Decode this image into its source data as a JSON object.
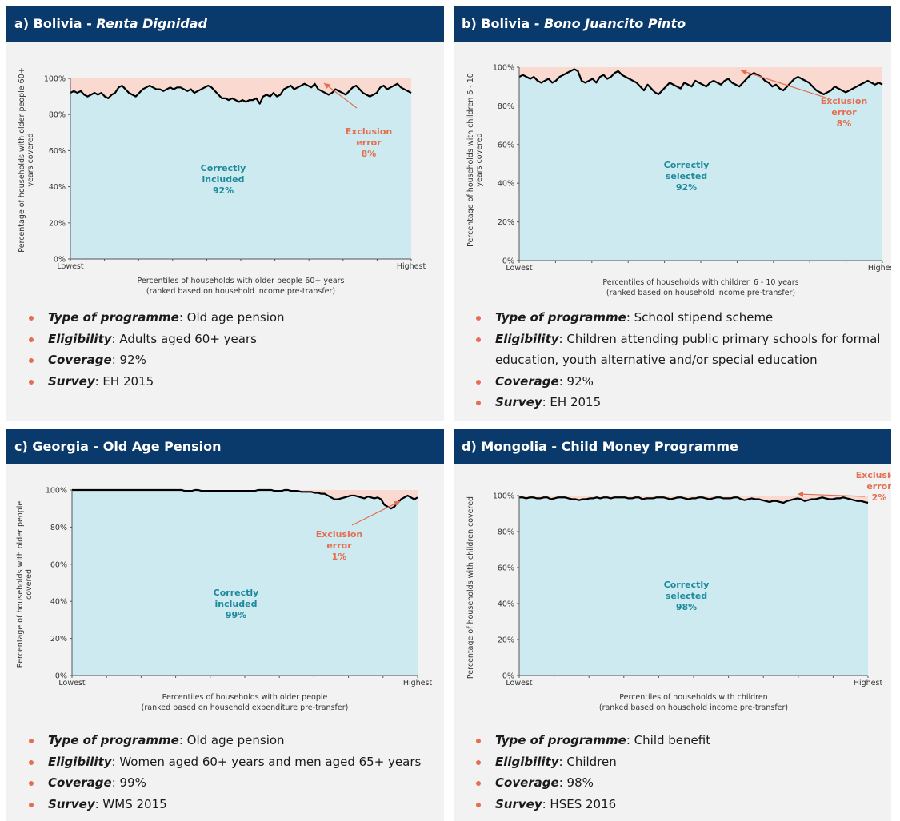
{
  "colors": {
    "header_bg": "#0a3a6b",
    "panel_bg": "#f2f2f2",
    "correct_fill": "#cdeaf1",
    "exclusion_fill": "#f9d9d0",
    "line": "#000000",
    "accent": "#e46e4f",
    "correct_text": "#1c8a9b"
  },
  "panels": [
    {
      "title_plain": "a) Bolivia - ",
      "title_italic": "Renta Dignidad",
      "ylabel_lines": [
        "Percentage of households with older people 60+",
        "years covered"
      ],
      "xlabel_lines": [
        "Percentiles of households with older people 60+ years",
        "(ranked based on household income pre-transfer)"
      ],
      "x_low": "Lowest",
      "x_high": "Highest",
      "correct_lines": [
        "Correctly",
        "included",
        "92%"
      ],
      "excl_lines": [
        "Exclusion",
        "error",
        "8%"
      ],
      "bullets": [
        {
          "key": "Type of programme",
          "text": ": Old age pension"
        },
        {
          "key": "Eligibility",
          "text": ": Adults aged 60+ years"
        },
        {
          "key": "Coverage",
          "text": ": 92%"
        },
        {
          "key": "Survey",
          "text": ": EH 2015"
        }
      ]
    },
    {
      "title_plain": "b) Bolivia - ",
      "title_italic": "Bono Juancito Pinto",
      "ylabel_lines": [
        "Percentage of households with children 6 - 10",
        "years covered"
      ],
      "xlabel_lines": [
        "Percentiles of households with children 6 - 10 years",
        "(ranked based on household income pre-transfer)"
      ],
      "x_low": "Lowest",
      "x_high": "Highest",
      "correct_lines": [
        "Correctly",
        "selected",
        "92%"
      ],
      "excl_lines": [
        "Exclusion",
        "error",
        "8%"
      ],
      "bullets": [
        {
          "key": "Type of programme",
          "text": ": School stipend scheme"
        },
        {
          "key": "Eligibility",
          "text": ":  Children attending public primary schools for formal education, youth alternative and/or special education"
        },
        {
          "key": "Coverage",
          "text": ": 92%"
        },
        {
          "key": "Survey",
          "text": ": EH 2015"
        }
      ]
    },
    {
      "title_plain": "c) Georgia - Old Age Pension",
      "title_italic": "",
      "ylabel_lines": [
        "Percentage of households with older people",
        "covered"
      ],
      "xlabel_lines": [
        "Percentiles of households with older people",
        "(ranked based on household expenditure pre-transfer)"
      ],
      "x_low": "Lowest",
      "x_high": "Highest",
      "correct_lines": [
        "Correctly",
        "included",
        "99%"
      ],
      "excl_lines": [
        "Exclusion",
        "error",
        "1%"
      ],
      "bullets": [
        {
          "key": "Type of programme",
          "text": ": Old age pension"
        },
        {
          "key": "Eligibility",
          "text": ": Women aged 60+ years and men aged 65+ years"
        },
        {
          "key": "Coverage",
          "text": ": 99%"
        },
        {
          "key": "Survey",
          "text": ": WMS 2015"
        }
      ]
    },
    {
      "title_plain": "d) Mongolia - Child Money Programme",
      "title_italic": "",
      "ylabel_lines": [
        "Percentage of households with children  covered"
      ],
      "xlabel_lines": [
        "Percentiles of households with children",
        "(ranked based on household income pre-transfer)"
      ],
      "x_low": "Lowest",
      "x_high": "Highest",
      "correct_lines": [
        "Correctly",
        "selected",
        "98%"
      ],
      "excl_lines": [
        "Exclusion",
        "error",
        "2%"
      ],
      "bullets": [
        {
          "key": "Type of programme",
          "text": ": Child benefit"
        },
        {
          "key": "Eligibility",
          "text": ": Children"
        },
        {
          "key": "Coverage",
          "text": ": 98%"
        },
        {
          "key": "Survey",
          "text": ": HSES 2016"
        }
      ]
    }
  ],
  "chart_data": [
    {
      "type": "area",
      "ylim": [
        0,
        100
      ],
      "yticks": [
        "0%",
        "20%",
        "40%",
        "60%",
        "80%",
        "100%"
      ],
      "values": [
        92,
        93,
        92,
        93,
        91,
        90,
        91,
        92,
        91,
        92,
        90,
        89,
        91,
        92,
        95,
        96,
        94,
        92,
        91,
        90,
        92,
        94,
        95,
        96,
        95,
        94,
        94,
        93,
        94,
        95,
        94,
        95,
        95,
        94,
        93,
        94,
        92,
        93,
        94,
        95,
        96,
        95,
        93,
        91,
        89,
        89,
        88,
        89,
        88,
        87,
        88,
        87,
        88,
        88,
        89,
        86,
        90,
        91,
        90,
        92,
        90,
        91,
        94,
        95,
        96,
        94,
        95,
        96,
        97,
        96,
        95,
        97,
        94,
        93,
        92,
        91,
        92,
        94,
        93,
        92,
        91,
        93,
        95,
        96,
        94,
        92,
        91,
        90,
        91,
        92,
        95,
        96,
        94,
        95,
        96,
        97,
        95,
        94,
        93,
        92
      ]
    },
    {
      "type": "area",
      "ylim": [
        0,
        100
      ],
      "yticks": [
        "0%",
        "20%",
        "40%",
        "60%",
        "80%",
        "100%"
      ],
      "values": [
        95,
        96,
        95,
        94,
        95,
        93,
        92,
        93,
        94,
        92,
        93,
        95,
        96,
        97,
        98,
        99,
        98,
        93,
        92,
        93,
        94,
        92,
        95,
        96,
        94,
        95,
        97,
        98,
        96,
        95,
        94,
        93,
        92,
        90,
        88,
        91,
        89,
        87,
        86,
        88,
        90,
        92,
        91,
        90,
        89,
        92,
        91,
        90,
        93,
        92,
        91,
        90,
        92,
        93,
        92,
        91,
        93,
        94,
        92,
        91,
        90,
        92,
        94,
        96,
        97,
        96,
        95,
        93,
        92,
        90,
        91,
        89,
        88,
        90,
        92,
        94,
        95,
        94,
        93,
        92,
        90,
        88,
        87,
        86,
        87,
        88,
        90,
        89,
        88,
        87,
        88,
        89,
        90,
        91,
        92,
        93,
        92,
        91,
        92,
        91
      ]
    },
    {
      "type": "area",
      "ylim": [
        0,
        100
      ],
      "yticks": [
        "0%",
        "20%",
        "40%",
        "60%",
        "80%",
        "100%"
      ],
      "values": [
        100,
        100,
        100,
        100,
        100,
        100,
        100,
        100,
        100,
        100,
        100,
        100,
        100,
        100,
        100,
        100,
        100,
        100,
        100,
        100,
        100,
        100,
        100,
        100,
        100,
        100,
        100,
        100,
        100,
        100,
        100,
        100,
        100,
        100,
        99.5,
        99.5,
        99.5,
        100,
        100,
        99.5,
        99.5,
        99.5,
        99.5,
        99.5,
        99.5,
        99.5,
        99.5,
        99.5,
        99.5,
        99.5,
        99.5,
        99.5,
        99.5,
        99.5,
        99.5,
        99.5,
        100,
        100,
        100,
        100,
        100,
        99.5,
        99.5,
        99.5,
        100,
        100,
        99.5,
        99.5,
        99.5,
        99,
        99,
        99,
        99,
        98.5,
        98.5,
        98,
        98,
        97,
        96,
        95,
        95,
        95.5,
        96,
        96.5,
        97,
        97,
        96.5,
        96,
        95.5,
        96.5,
        96,
        95.5,
        96,
        95,
        92,
        91,
        90,
        91,
        93,
        95,
        96,
        97,
        96,
        95,
        96
      ]
    },
    {
      "type": "area",
      "ylim": [
        0,
        100
      ],
      "yticks": [
        "0%",
        "20%",
        "40%",
        "60%",
        "80%",
        "100%"
      ],
      "values": [
        99,
        99,
        98.5,
        99,
        99,
        98.5,
        98.5,
        99,
        99,
        98,
        98.5,
        99,
        99,
        99,
        98.5,
        98,
        98,
        97.5,
        98,
        98,
        98.5,
        98.5,
        99,
        98.5,
        99,
        99,
        98.5,
        99,
        99,
        99,
        99,
        98.5,
        98.5,
        99,
        99,
        98,
        98.5,
        98.5,
        98.5,
        99,
        99,
        99,
        98.5,
        98,
        98.5,
        99,
        99,
        98.5,
        98,
        98.5,
        98.5,
        99,
        99,
        98.5,
        98,
        98.5,
        99,
        99,
        98.5,
        98.5,
        98.5,
        99,
        99,
        98,
        97.5,
        98,
        98.5,
        98,
        98,
        97.5,
        97,
        96.5,
        97,
        97,
        96.5,
        96,
        97,
        97.5,
        98,
        98.5,
        98,
        97,
        97.5,
        98,
        98,
        98.5,
        99,
        98.5,
        98,
        98,
        98.5,
        98.5,
        99,
        98.5,
        98,
        97.5,
        97,
        97,
        96.5,
        96
      ]
    }
  ]
}
